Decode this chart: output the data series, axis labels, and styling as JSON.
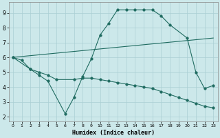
{
  "xlabel": "Humidex (Indice chaleur)",
  "xlim": [
    -0.5,
    23.5
  ],
  "ylim": [
    1.7,
    9.7
  ],
  "yticks": [
    2,
    3,
    4,
    5,
    6,
    7,
    8,
    9
  ],
  "xticks": [
    0,
    1,
    2,
    3,
    4,
    5,
    6,
    7,
    8,
    9,
    10,
    11,
    12,
    13,
    14,
    15,
    16,
    17,
    18,
    19,
    20,
    21,
    22,
    23
  ],
  "bg_color": "#cce8ea",
  "line_color": "#1f6b60",
  "grid_color": "#aacfd4",
  "line1_x": [
    0,
    1,
    2,
    3,
    4,
    6,
    7,
    8,
    9,
    10,
    11,
    12,
    13,
    14,
    15,
    16,
    17,
    18,
    20,
    21,
    22,
    23
  ],
  "line1_y": [
    6.0,
    5.8,
    5.2,
    4.8,
    4.4,
    2.2,
    3.3,
    4.7,
    5.9,
    7.5,
    8.3,
    9.2,
    9.2,
    9.2,
    9.2,
    9.2,
    8.8,
    8.2,
    7.3,
    5.0,
    3.9,
    4.1
  ],
  "line2_x": [
    0,
    23
  ],
  "line2_y": [
    6.0,
    7.3
  ],
  "line3_x": [
    0,
    2,
    3,
    4,
    5,
    7,
    8,
    9,
    10,
    11,
    12,
    13,
    14,
    15,
    16,
    17,
    18,
    19,
    20,
    21,
    22,
    23
  ],
  "line3_y": [
    6.0,
    5.2,
    5.0,
    4.8,
    4.5,
    4.5,
    4.6,
    4.6,
    4.5,
    4.4,
    4.3,
    4.2,
    4.1,
    4.0,
    3.9,
    3.7,
    3.5,
    3.3,
    3.1,
    2.9,
    2.7,
    2.6
  ]
}
